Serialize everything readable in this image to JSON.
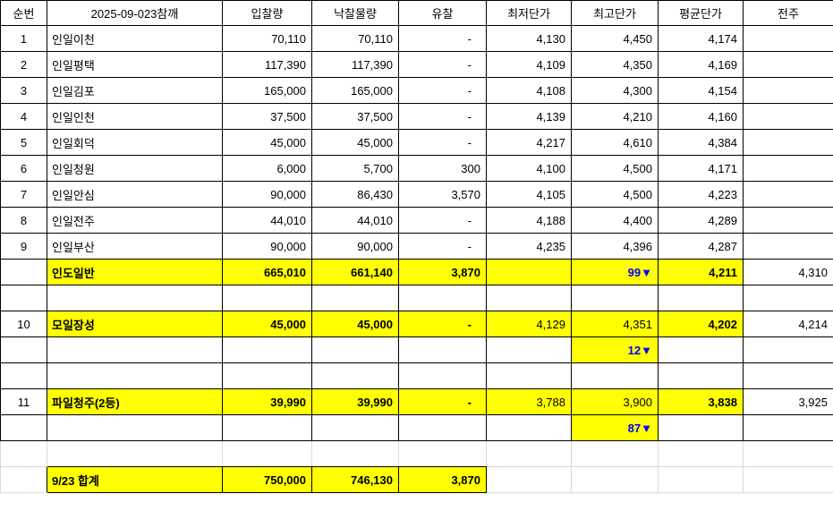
{
  "table": {
    "headers": [
      "순번",
      "2025-09-023참깨",
      "입찰량",
      "낙찰물량",
      "유찰",
      "최저단가",
      "최고단가",
      "평균단가",
      "전주"
    ],
    "rows": [
      {
        "style": "data",
        "no": "1",
        "name": "인일이천",
        "bid": "70,110",
        "won": "70,110",
        "failed": "-",
        "min": "4,130",
        "max": "4,450",
        "avg": "4,174",
        "prev": ""
      },
      {
        "style": "data",
        "no": "2",
        "name": "인일평택",
        "bid": "117,390",
        "won": "117,390",
        "failed": "-",
        "min": "4,109",
        "max": "4,350",
        "avg": "4,169",
        "prev": ""
      },
      {
        "style": "data",
        "no": "3",
        "name": "인일김포",
        "bid": "165,000",
        "won": "165,000",
        "failed": "-",
        "min": "4,108",
        "max": "4,300",
        "avg": "4,154",
        "prev": ""
      },
      {
        "style": "data",
        "no": "4",
        "name": "인일인천",
        "bid": "37,500",
        "won": "37,500",
        "failed": "-",
        "min": "4,139",
        "max": "4,210",
        "avg": "4,160",
        "prev": ""
      },
      {
        "style": "data",
        "no": "5",
        "name": "인일회덕",
        "bid": "45,000",
        "won": "45,000",
        "failed": "-",
        "min": "4,217",
        "max": "4,610",
        "avg": "4,384",
        "prev": ""
      },
      {
        "style": "data",
        "no": "6",
        "name": "인일청원",
        "bid": "6,000",
        "won": "5,700",
        "failed": "300",
        "min": "4,100",
        "max": "4,500",
        "avg": "4,171",
        "prev": ""
      },
      {
        "style": "data",
        "no": "7",
        "name": "인일안심",
        "bid": "90,000",
        "won": "86,430",
        "failed": "3,570",
        "min": "4,105",
        "max": "4,500",
        "avg": "4,223",
        "prev": ""
      },
      {
        "style": "data",
        "no": "8",
        "name": "인일전주",
        "bid": "44,010",
        "won": "44,010",
        "failed": "-",
        "min": "4,188",
        "max": "4,400",
        "avg": "4,289",
        "prev": ""
      },
      {
        "style": "data",
        "no": "9",
        "name": "인일부산",
        "bid": "90,000",
        "won": "90,000",
        "failed": "-",
        "min": "4,235",
        "max": "4,396",
        "avg": "4,287",
        "prev": ""
      },
      {
        "style": "subtotal-main",
        "no": "",
        "name": "인도일반",
        "bid": "665,010",
        "won": "661,140",
        "failed": "3,870",
        "min": "",
        "max": "99▼",
        "avg": "4,211",
        "prev": "4,310"
      },
      {
        "style": "spacer"
      },
      {
        "style": "subtotal",
        "no": "10",
        "name": "모일장성",
        "bid": "45,000",
        "won": "45,000",
        "failed": "-",
        "min": "4,129",
        "max": "4,351",
        "avg": "4,202",
        "prev": "4,214"
      },
      {
        "style": "delta",
        "max": "12▼"
      },
      {
        "style": "spacer"
      },
      {
        "style": "subtotal",
        "no": "11",
        "name": "파일청주(2등)",
        "bid": "39,990",
        "won": "39,990",
        "failed": "-",
        "min": "3,788",
        "max": "3,900",
        "avg": "3,838",
        "prev": "3,925"
      },
      {
        "style": "delta",
        "max": "87▼"
      },
      {
        "style": "spacer-gray"
      },
      {
        "style": "total",
        "no": "",
        "name": "9/23 합계",
        "bid": "750,000",
        "won": "746,130",
        "failed": "3,870",
        "min": "",
        "max": "",
        "avg": "",
        "prev": ""
      }
    ]
  },
  "colors": {
    "highlight_yellow": "#ffff00",
    "delta_blue": "#0000ff",
    "grid_black": "#000000",
    "grid_gray": "#d9d9d9"
  }
}
